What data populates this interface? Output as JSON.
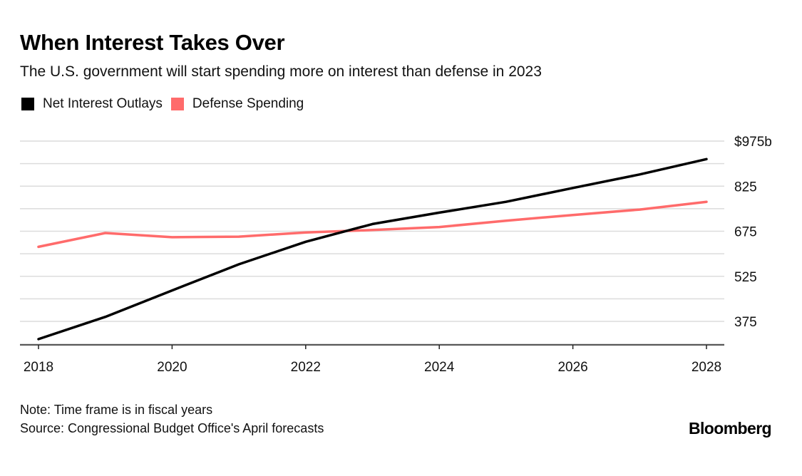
{
  "header": {
    "title": "When Interest Takes Over",
    "subtitle": "The U.S. government will start spending more on interest than defense in 2023"
  },
  "footer": {
    "note": "Note: Time frame is in fiscal years",
    "source": "Source: Congressional Budget Office's April forecasts",
    "brand": "Bloomberg"
  },
  "chart_data": {
    "type": "line",
    "title": "When Interest Takes Over",
    "subtitle": "The U.S. government will start spending more on interest than defense in 2023",
    "x": [
      2018,
      2019,
      2020,
      2021,
      2022,
      2023,
      2024,
      2025,
      2026,
      2027,
      2028
    ],
    "series": [
      {
        "name": "Net Interest Outlays",
        "color": "#000000",
        "values": [
          316,
          390,
          478,
          565,
          640,
          699,
          737,
          773,
          819,
          864,
          915
        ]
      },
      {
        "name": "Defense Spending",
        "color": "#ff6b6b",
        "values": [
          623,
          669,
          655,
          657,
          671,
          679,
          689,
          710,
          729,
          747,
          773
        ]
      }
    ],
    "xlim": [
      2018,
      2028
    ],
    "ylim": [
      300,
      975
    ],
    "y_ticks": [
      375,
      525,
      675,
      825,
      975
    ],
    "y_tick_labels": [
      "375",
      "525",
      "675",
      "825",
      "$975b"
    ],
    "x_ticks": [
      2018,
      2020,
      2022,
      2024,
      2026,
      2028
    ],
    "x_tick_labels": [
      "2018",
      "2020",
      "2022",
      "2024",
      "2026",
      "2028"
    ],
    "grid": true,
    "legend_position": "top-left",
    "xlabel": "",
    "ylabel": ""
  }
}
